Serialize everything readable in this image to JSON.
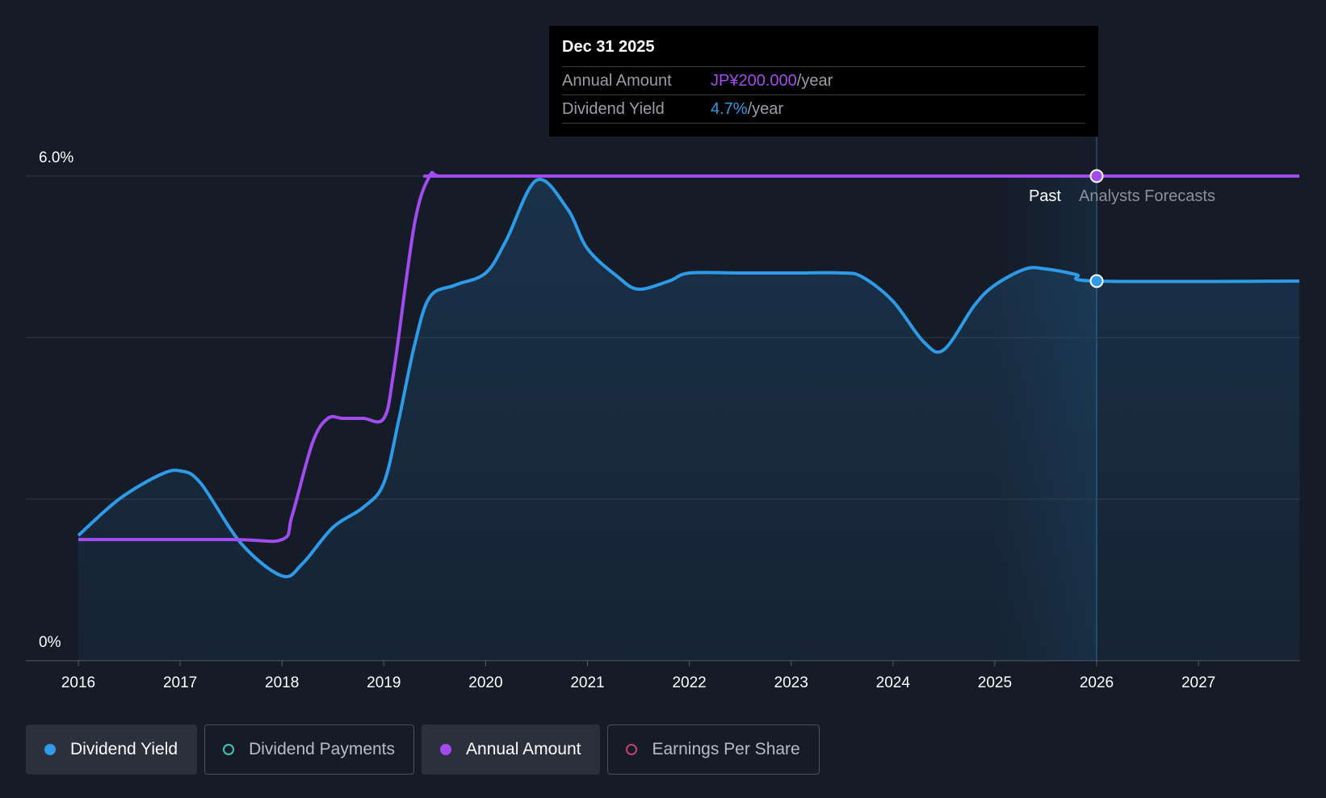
{
  "tooltip": {
    "date": "Dec 31 2025",
    "annual_label": "Annual Amount",
    "annual_value": "JP¥200.000",
    "annual_unit": "/year",
    "yield_label": "Dividend Yield",
    "yield_value": "4.7%",
    "yield_unit": "/year"
  },
  "regions": {
    "past": "Past",
    "forecast": "Analysts Forecasts"
  },
  "legend": [
    {
      "label": "Dividend Yield",
      "color": "#2e9be8",
      "active": true,
      "filled": true
    },
    {
      "label": "Dividend Payments",
      "color": "#3fc7b4",
      "active": false,
      "filled": false
    },
    {
      "label": "Annual Amount",
      "color": "#a24cf0",
      "active": true,
      "filled": true
    },
    {
      "label": "Earnings Per Share",
      "color": "#c2416f",
      "active": false,
      "filled": false
    }
  ],
  "colors": {
    "yield": "#2e9be8",
    "annual": "#a24cf0",
    "background": "#151b27"
  },
  "chart_data": {
    "type": "line",
    "title": "",
    "xlabel": "",
    "ylabel": "",
    "x_ticks": [
      "2016",
      "2017",
      "2018",
      "2019",
      "2020",
      "2021",
      "2022",
      "2023",
      "2024",
      "2025",
      "2026",
      "2027"
    ],
    "y_tick_labels": [
      "6.0%",
      "0%"
    ],
    "ylim": [
      0,
      6.0
    ],
    "xlim": [
      2016,
      2027.99
    ],
    "past_end": 2026.0,
    "series": [
      {
        "name": "Dividend Yield",
        "unit": "%",
        "x": [
          2016.0,
          2016.4,
          2016.8,
          2017.0,
          2017.2,
          2017.6,
          2018.0,
          2018.2,
          2018.5,
          2018.8,
          2019.0,
          2019.15,
          2019.3,
          2019.45,
          2019.7,
          2020.0,
          2020.2,
          2020.5,
          2020.8,
          2021.0,
          2021.3,
          2021.5,
          2021.8,
          2022.0,
          2022.5,
          2023.0,
          2023.5,
          2023.7,
          2024.0,
          2024.3,
          2024.5,
          2024.8,
          2025.0,
          2025.3,
          2025.5,
          2025.8,
          2026.0,
          2027.99
        ],
        "y": [
          1.55,
          2.0,
          2.3,
          2.35,
          2.2,
          1.45,
          1.05,
          1.2,
          1.65,
          1.9,
          2.2,
          3.0,
          3.9,
          4.5,
          4.65,
          4.8,
          5.2,
          5.95,
          5.6,
          5.1,
          4.75,
          4.6,
          4.7,
          4.8,
          4.8,
          4.8,
          4.8,
          4.75,
          4.45,
          3.95,
          3.85,
          4.4,
          4.65,
          4.85,
          4.85,
          4.78,
          4.7,
          4.7
        ]
      },
      {
        "name": "Annual Amount",
        "unit": "JP¥",
        "x": [
          2016.0,
          2017.5,
          2018.0,
          2018.1,
          2018.3,
          2018.45,
          2018.6,
          2018.8,
          2019.0,
          2019.1,
          2019.3,
          2019.45,
          2019.55,
          2020.0,
          2026.0,
          2027.99
        ],
        "y": [
          50,
          50,
          50,
          60,
          90,
          100,
          100,
          100,
          100,
          120,
          180,
          200,
          200,
          200,
          200,
          200
        ]
      }
    ],
    "annual_axis_max": 200
  }
}
